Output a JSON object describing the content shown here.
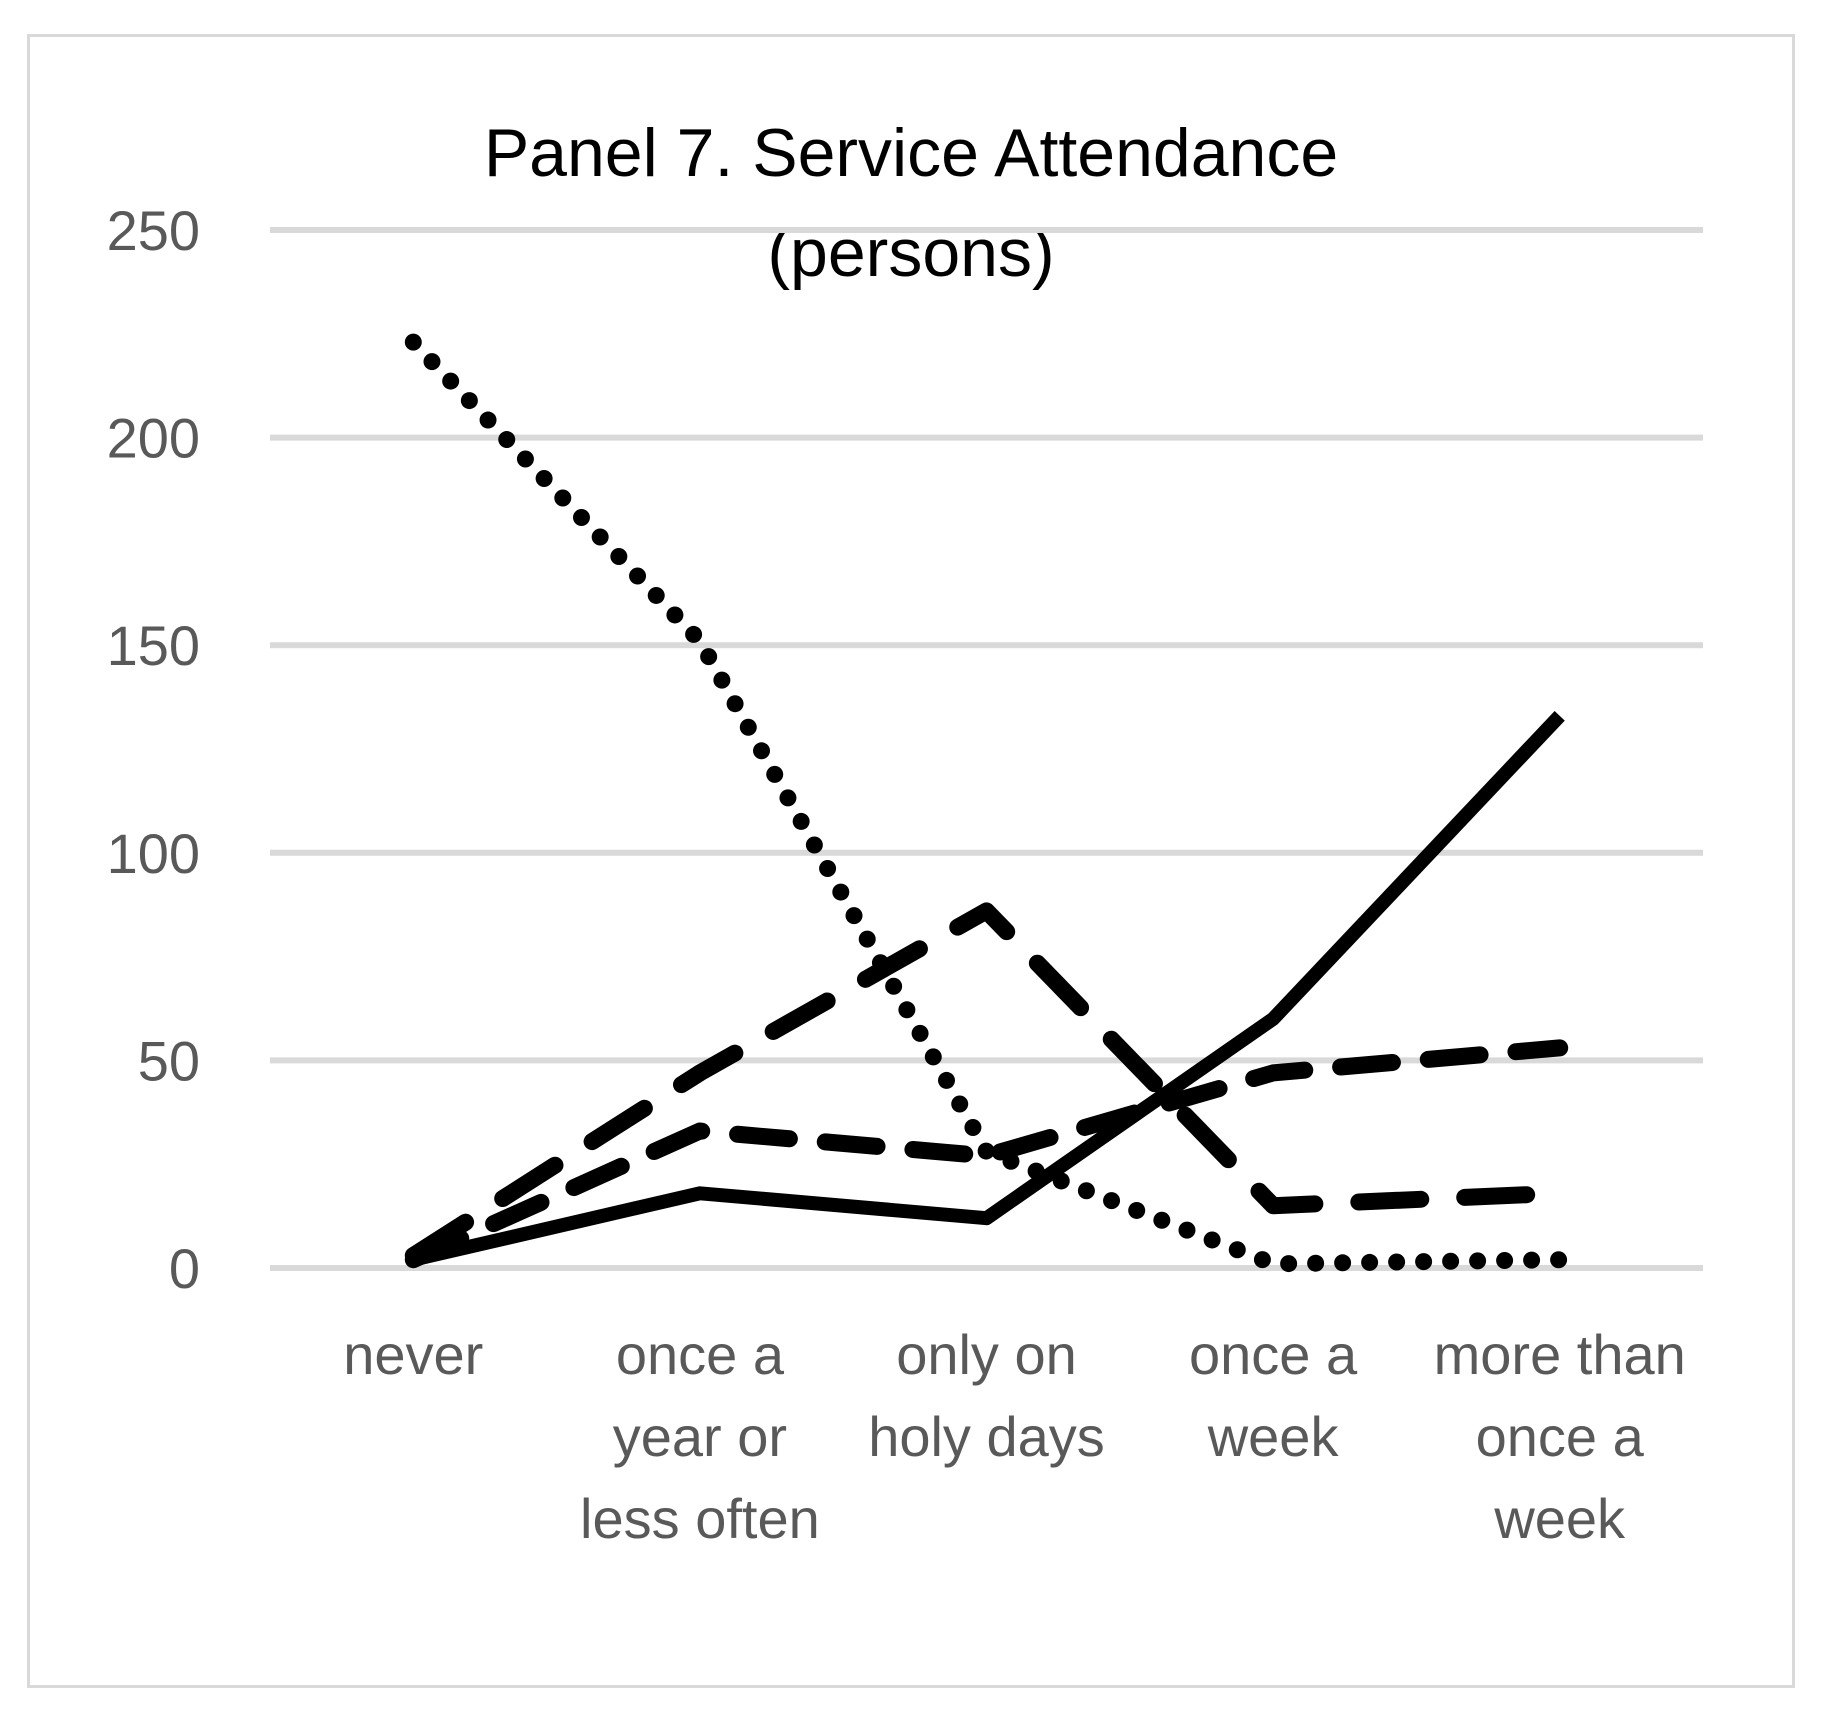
{
  "chart_data": {
    "type": "line",
    "title": "Panel 7. Service Attendance",
    "subtitle": "(persons)",
    "xlabel": "",
    "ylabel": "",
    "ylim": [
      0,
      250
    ],
    "yticks": [
      0,
      50,
      100,
      150,
      200,
      250
    ],
    "grid": true,
    "legend": "none",
    "categories": [
      [
        "never"
      ],
      [
        "once a",
        "year or",
        "less often"
      ],
      [
        "only on",
        "holy days"
      ],
      [
        "once a",
        "week"
      ],
      [
        "more than",
        "once a",
        "week"
      ]
    ],
    "series": [
      {
        "name": "dotted",
        "style": "dotted",
        "values": [
          223,
          151,
          28,
          1,
          2
        ]
      },
      {
        "name": "long-dash",
        "style": "long-dash",
        "values": [
          3,
          47,
          86,
          15,
          18
        ]
      },
      {
        "name": "medium-dash",
        "style": "medium-dash",
        "values": [
          2,
          33,
          27,
          47,
          53
        ]
      },
      {
        "name": "solid",
        "style": "solid",
        "values": [
          2,
          18,
          12,
          60,
          133
        ]
      }
    ]
  },
  "colors": {
    "line": "#000000",
    "grid": "#d9d9d9",
    "tick_text": "#595959",
    "border": "#d9d9d9"
  }
}
